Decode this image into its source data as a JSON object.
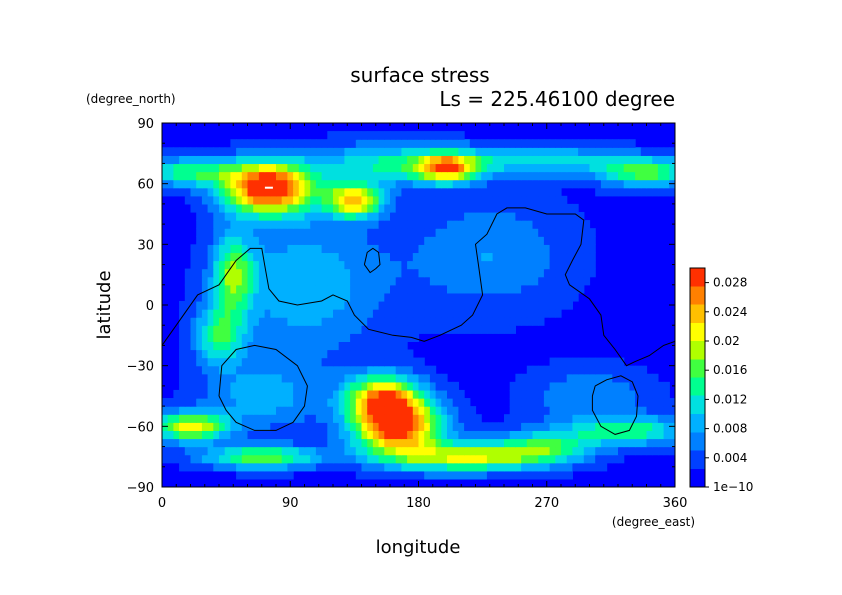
{
  "chart_data": {
    "type": "heatmap",
    "title": "surface stress",
    "subtitle": "Ls = 225.46100 degree",
    "xlabel": "longitude",
    "ylabel": "latitude",
    "x_units": "(degree_east)",
    "y_units": "(degree_north)",
    "xlim": [
      0,
      360
    ],
    "ylim": [
      -90,
      90
    ],
    "xticks": [
      0,
      90,
      180,
      270,
      360
    ],
    "yticks": [
      -90,
      -60,
      -30,
      0,
      30,
      60,
      90
    ],
    "x_tick_labels": [
      "0",
      "90",
      "180",
      "270",
      "360"
    ],
    "y_tick_labels": [
      "−90",
      "−60",
      "−30",
      "0",
      "30",
      "60",
      "90"
    ],
    "colorbar": {
      "range": [
        0,
        0.03
      ],
      "tick_values": [
        0,
        0.004,
        0.008,
        0.012,
        0.016,
        0.02,
        0.024,
        0.028
      ],
      "tick_labels": [
        "1e−10",
        "0.004",
        "0.008",
        "0.012",
        "0.016",
        "0.02",
        "0.024",
        "0.028"
      ],
      "colors": [
        "#0000ff",
        "#0040ff",
        "#0080ff",
        "#00b0ff",
        "#00e0e0",
        "#00ff90",
        "#40ff40",
        "#b0ff00",
        "#ffff00",
        "#ffc000",
        "#ff8000",
        "#ff3000"
      ]
    },
    "hotspots": [
      {
        "lon": 75,
        "lat": 58,
        "sx": 22,
        "sy": 9,
        "value": 0.03
      },
      {
        "lon": 135,
        "lat": 52,
        "sx": 14,
        "sy": 6,
        "value": 0.021
      },
      {
        "lon": 200,
        "lat": 68,
        "sx": 15,
        "sy": 5,
        "value": 0.02
      },
      {
        "lon": 340,
        "lat": 66,
        "sx": 24,
        "sy": 5,
        "value": 0.015
      },
      {
        "lon": 20,
        "lat": 66,
        "sx": 25,
        "sy": 5,
        "value": 0.013
      },
      {
        "lon": 265,
        "lat": 72,
        "sx": 40,
        "sy": 5,
        "value": 0.01
      },
      {
        "lon": 160,
        "lat": 70,
        "sx": 40,
        "sy": 7,
        "value": 0.011
      },
      {
        "lon": 50,
        "lat": 15,
        "sx": 10,
        "sy": 14,
        "value": 0.014
      },
      {
        "lon": 40,
        "lat": -15,
        "sx": 12,
        "sy": 10,
        "value": 0.012
      },
      {
        "lon": 100,
        "lat": 10,
        "sx": 40,
        "sy": 25,
        "value": 0.008
      },
      {
        "lon": 230,
        "lat": 25,
        "sx": 40,
        "sy": 20,
        "value": 0.006
      },
      {
        "lon": 165,
        "lat": -60,
        "sx": 22,
        "sy": 10,
        "value": 0.028
      },
      {
        "lon": 155,
        "lat": -45,
        "sx": 18,
        "sy": 8,
        "value": 0.02
      },
      {
        "lon": 215,
        "lat": -75,
        "sx": 35,
        "sy": 5,
        "value": 0.018
      },
      {
        "lon": 20,
        "lat": -60,
        "sx": 18,
        "sy": 5,
        "value": 0.02
      },
      {
        "lon": 70,
        "lat": -75,
        "sx": 30,
        "sy": 4,
        "value": 0.015
      },
      {
        "lon": 330,
        "lat": -62,
        "sx": 30,
        "sy": 5,
        "value": 0.012
      },
      {
        "lon": 270,
        "lat": -70,
        "sx": 25,
        "sy": 6,
        "value": 0.012
      },
      {
        "lon": 70,
        "lat": -45,
        "sx": 30,
        "sy": 12,
        "value": 0.007
      },
      {
        "lon": 300,
        "lat": -45,
        "sx": 30,
        "sy": 10,
        "value": 0.006
      }
    ],
    "max_marker": {
      "lon": 75,
      "lat": 58
    },
    "contours": [
      [
        [
          0,
          -20
        ],
        [
          10,
          -10
        ],
        [
          25,
          5
        ],
        [
          40,
          10
        ],
        [
          52,
          22
        ],
        [
          62,
          28
        ],
        [
          70,
          28
        ],
        [
          72,
          20
        ],
        [
          75,
          8
        ],
        [
          82,
          2
        ],
        [
          95,
          0
        ],
        [
          112,
          2
        ],
        [
          120,
          5
        ],
        [
          130,
          2
        ],
        [
          135,
          -5
        ],
        [
          145,
          -12
        ],
        [
          162,
          -15
        ],
        [
          175,
          -16
        ],
        [
          184,
          -18
        ],
        [
          195,
          -15
        ],
        [
          210,
          -10
        ],
        [
          218,
          -5
        ],
        [
          225,
          5
        ],
        [
          222,
          20
        ],
        [
          220,
          30
        ],
        [
          228,
          35
        ],
        [
          235,
          45
        ],
        [
          242,
          48
        ],
        [
          255,
          48
        ],
        [
          270,
          45
        ],
        [
          290,
          45
        ],
        [
          296,
          42
        ],
        [
          294,
          30
        ],
        [
          288,
          22
        ],
        [
          283,
          15
        ],
        [
          286,
          10
        ],
        [
          300,
          3
        ],
        [
          308,
          -5
        ],
        [
          310,
          -15
        ],
        [
          318,
          -22
        ],
        [
          326,
          -30
        ],
        [
          332,
          -28
        ],
        [
          342,
          -25
        ],
        [
          352,
          -20
        ],
        [
          360,
          -18
        ]
      ],
      [
        [
          142,
          20
        ],
        [
          144,
          26
        ],
        [
          148,
          28
        ],
        [
          152,
          26
        ],
        [
          153,
          20
        ],
        [
          150,
          18
        ],
        [
          146,
          16
        ],
        [
          142,
          20
        ]
      ],
      [
        [
          40,
          -45
        ],
        [
          42,
          -30
        ],
        [
          52,
          -22
        ],
        [
          65,
          -20
        ],
        [
          80,
          -22
        ],
        [
          95,
          -30
        ],
        [
          102,
          -40
        ],
        [
          100,
          -50
        ],
        [
          92,
          -58
        ],
        [
          80,
          -62
        ],
        [
          65,
          -62
        ],
        [
          52,
          -58
        ],
        [
          45,
          -52
        ],
        [
          40,
          -45
        ]
      ],
      [
        [
          304,
          -40
        ],
        [
          312,
          -37
        ],
        [
          322,
          -35
        ],
        [
          330,
          -38
        ],
        [
          334,
          -45
        ],
        [
          333,
          -55
        ],
        [
          328,
          -62
        ],
        [
          318,
          -64
        ],
        [
          308,
          -60
        ],
        [
          302,
          -52
        ],
        [
          302,
          -45
        ],
        [
          304,
          -40
        ]
      ]
    ]
  }
}
